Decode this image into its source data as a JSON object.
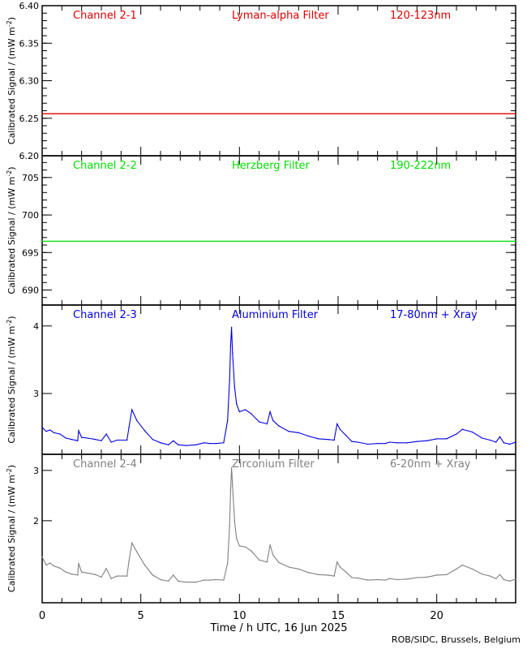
{
  "chart_data": [
    {
      "type": "line",
      "label_left": "Channel 2-1",
      "label_mid": "Lyman-alpha Filter",
      "label_right": "120-123nm",
      "color": "#e00000",
      "ylabel": "Calibrated Signal / (mW m",
      "ylabel_sup": "-2",
      "ylabel_end": ")",
      "ylim": [
        6.2,
        6.4
      ],
      "yticks": [
        6.2,
        6.25,
        6.3,
        6.35,
        6.4
      ],
      "ytick_labels": [
        "6.20",
        "6.25",
        "6.30",
        "6.35",
        "6.40"
      ],
      "yminor": 0.01,
      "x": [
        0,
        24
      ],
      "y": [
        6.256,
        6.256
      ]
    },
    {
      "type": "line",
      "label_left": "Channel 2-2",
      "label_mid": "Herzberg Filter",
      "label_right": "190-222nm",
      "color": "#00e000",
      "ylabel": "Calibrated Signal / (mW m",
      "ylabel_sup": "-2",
      "ylabel_end": ")",
      "ylim": [
        688,
        707.9
      ],
      "yticks": [
        690,
        695,
        700,
        705
      ],
      "ytick_labels": [
        "690",
        "695",
        "700",
        "705"
      ],
      "yminor": 1,
      "x": [
        0,
        24
      ],
      "y": [
        696.5,
        696.5
      ]
    },
    {
      "type": "scatter",
      "label_left": "Channel 2-3",
      "label_mid": "Aluminium Filter",
      "label_right": "17-80nm + Xray",
      "color": "#0000e0",
      "ylabel": "Calibrated Signal / (mW m",
      "ylabel_sup": "-2",
      "ylabel_end": ")",
      "ylim": [
        2.1,
        4.31
      ],
      "yticks": [
        3,
        4
      ],
      "ytick_labels": [
        "3",
        "4"
      ],
      "yminor": null,
      "x": [
        0,
        0.2,
        0.4,
        0.6,
        0.9,
        1.2,
        1.5,
        1.8,
        1.85,
        2.0,
        2.3,
        2.7,
        3.0,
        3.25,
        3.5,
        3.8,
        4.3,
        4.4,
        4.55,
        4.8,
        5.2,
        5.6,
        6.0,
        6.4,
        6.65,
        6.9,
        7.3,
        7.8,
        8.2,
        8.5,
        8.8,
        9.2,
        9.4,
        9.5,
        9.55,
        9.6,
        9.65,
        9.75,
        9.85,
        10.0,
        10.3,
        10.6,
        11.0,
        11.4,
        11.55,
        11.7,
        12.0,
        12.5,
        13.0,
        13.5,
        14.0,
        14.5,
        14.8,
        14.95,
        15.1,
        15.4,
        15.7,
        16.0,
        16.5,
        17.0,
        17.4,
        17.6,
        18.0,
        18.5,
        19.0,
        19.5,
        20.0,
        20.5,
        21.0,
        21.3,
        21.8,
        22.3,
        22.7,
        23.0,
        23.2,
        23.4,
        23.7,
        24.0
      ],
      "y": [
        2.5,
        2.44,
        2.46,
        2.42,
        2.4,
        2.34,
        2.32,
        2.3,
        2.45,
        2.35,
        2.34,
        2.32,
        2.3,
        2.4,
        2.28,
        2.31,
        2.31,
        2.5,
        2.76,
        2.6,
        2.45,
        2.32,
        2.27,
        2.24,
        2.3,
        2.24,
        2.23,
        2.24,
        2.27,
        2.26,
        2.26,
        2.27,
        2.6,
        3.2,
        3.7,
        3.98,
        3.6,
        3.1,
        2.85,
        2.73,
        2.76,
        2.7,
        2.58,
        2.55,
        2.73,
        2.6,
        2.52,
        2.44,
        2.42,
        2.37,
        2.33,
        2.32,
        2.31,
        2.55,
        2.47,
        2.38,
        2.29,
        2.28,
        2.25,
        2.26,
        2.26,
        2.28,
        2.27,
        2.27,
        2.29,
        2.3,
        2.33,
        2.33,
        2.4,
        2.47,
        2.43,
        2.34,
        2.31,
        2.28,
        2.36,
        2.27,
        2.25,
        2.28
      ]
    },
    {
      "type": "scatter",
      "label_left": "Channel 2-4",
      "label_mid": "Zirconium Filter",
      "label_right": "6-20nm + Xray",
      "color": "#808080",
      "ylabel": "Calibrated Signal / (mW m",
      "ylabel_sup": "-2",
      "ylabel_end": ")",
      "ylim": [
        0.37,
        3.32
      ],
      "yticks": [
        2,
        3
      ],
      "ytick_labels": [
        "2",
        "3"
      ],
      "yminor": null,
      "x": [
        0,
        0.2,
        0.4,
        0.6,
        0.9,
        1.2,
        1.5,
        1.8,
        1.85,
        2.0,
        2.3,
        2.7,
        3.0,
        3.25,
        3.5,
        3.8,
        4.3,
        4.4,
        4.55,
        4.8,
        5.2,
        5.6,
        6.0,
        6.4,
        6.65,
        6.9,
        7.3,
        7.8,
        8.2,
        8.5,
        8.8,
        9.2,
        9.4,
        9.5,
        9.55,
        9.6,
        9.65,
        9.75,
        9.85,
        10.0,
        10.3,
        10.6,
        11.0,
        11.4,
        11.55,
        11.7,
        12.0,
        12.5,
        13.0,
        13.5,
        14.0,
        14.5,
        14.8,
        14.95,
        15.1,
        15.4,
        15.7,
        16.0,
        16.5,
        17.0,
        17.4,
        17.6,
        18.0,
        18.5,
        19.0,
        19.5,
        20.0,
        20.5,
        21.0,
        21.3,
        21.8,
        22.3,
        22.7,
        23.0,
        23.2,
        23.4,
        23.7,
        24.0
      ],
      "y": [
        1.28,
        1.12,
        1.16,
        1.1,
        1.06,
        0.98,
        0.94,
        0.92,
        1.15,
        0.98,
        0.96,
        0.93,
        0.88,
        1.05,
        0.85,
        0.9,
        0.9,
        1.2,
        1.56,
        1.38,
        1.12,
        0.92,
        0.83,
        0.8,
        0.92,
        0.8,
        0.78,
        0.78,
        0.82,
        0.82,
        0.83,
        0.82,
        1.15,
        1.9,
        2.6,
        3.05,
        2.7,
        2.0,
        1.65,
        1.5,
        1.48,
        1.4,
        1.22,
        1.18,
        1.52,
        1.32,
        1.17,
        1.08,
        1.04,
        0.97,
        0.93,
        0.92,
        0.9,
        1.18,
        1.08,
        0.98,
        0.87,
        0.86,
        0.82,
        0.83,
        0.82,
        0.85,
        0.83,
        0.84,
        0.87,
        0.88,
        0.92,
        0.93,
        1.04,
        1.12,
        1.04,
        0.94,
        0.9,
        0.85,
        0.93,
        0.83,
        0.8,
        0.84
      ]
    }
  ],
  "x_axis": {
    "xlim": [
      0,
      24
    ],
    "ticks": [
      0,
      5,
      10,
      15,
      20
    ],
    "tick_labels": [
      "0",
      "5",
      "10",
      "15",
      "20"
    ],
    "minor": 1,
    "xlabel": "Time / h UTC, 16 Jun 2025"
  },
  "credit": "ROB/SIDC, Brussels, Belgium"
}
